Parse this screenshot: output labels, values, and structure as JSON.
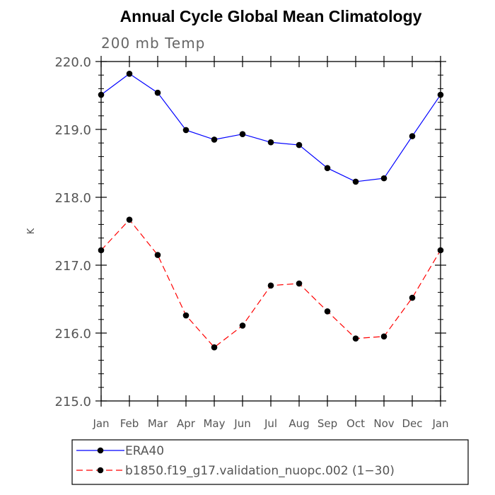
{
  "chart_data": {
    "type": "line",
    "title": "Annual Cycle Global Mean Climatology",
    "subtitle": "200 mb Temp",
    "xlabel": "",
    "ylabel": "K",
    "categories": [
      "Jan",
      "Feb",
      "Mar",
      "Apr",
      "May",
      "Jun",
      "Jul",
      "Aug",
      "Sep",
      "Oct",
      "Nov",
      "Dec",
      "Jan"
    ],
    "ylim": [
      215.0,
      220.0
    ],
    "yticks": [
      "215.0",
      "216.0",
      "217.0",
      "218.0",
      "219.0",
      "220.0"
    ],
    "grid": false,
    "legend_position": "bottom",
    "series": [
      {
        "name": "ERA40",
        "color": "#0000ff",
        "line_style": "solid",
        "marker": "circle",
        "values": [
          219.51,
          219.82,
          219.54,
          218.99,
          218.85,
          218.93,
          218.81,
          218.77,
          218.43,
          218.23,
          218.28,
          218.9,
          219.51
        ]
      },
      {
        "name": "b1850.f19_g17.validation_nuopc.002 (1−30)",
        "color": "#ff0000",
        "line_style": "dashed",
        "marker": "circle",
        "values": [
          217.22,
          217.67,
          217.15,
          216.26,
          215.79,
          216.11,
          216.7,
          216.73,
          216.32,
          215.92,
          215.95,
          216.52,
          217.22
        ]
      }
    ]
  }
}
